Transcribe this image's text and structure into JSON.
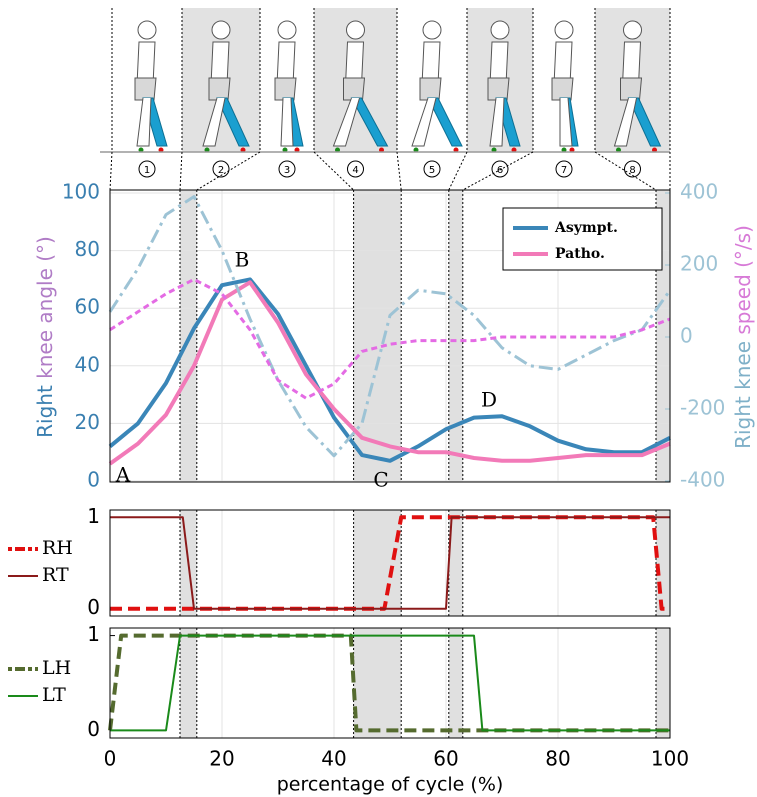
{
  "phases": {
    "labels": [
      "1",
      "2",
      "3",
      "4",
      "5",
      "6",
      "7",
      "8"
    ]
  },
  "chart_data": [
    {
      "type": "line",
      "ylabel_parts": [
        "Right",
        "knee angle (°)"
      ],
      "y2label_parts": [
        "Right knee",
        "speed (°/s)"
      ],
      "annotations": [
        "A",
        "B",
        "C",
        "D"
      ],
      "xlim": [
        0,
        100
      ],
      "ylim": [
        0,
        100
      ],
      "yticks": [
        0,
        20,
        40,
        60,
        80,
        100
      ],
      "y2lim": [
        -400,
        400
      ],
      "y2ticks": [
        -400,
        -200,
        0,
        200,
        400
      ],
      "grid": true,
      "legend": "upper right",
      "phase_bounds": [
        0,
        12.5,
        15.5,
        43.5,
        52,
        60.5,
        63,
        97.5,
        100
      ],
      "x": [
        0,
        5,
        10,
        15,
        20,
        25,
        30,
        35,
        40,
        45,
        50,
        55,
        60,
        65,
        70,
        75,
        80,
        85,
        90,
        95,
        100
      ],
      "series": [
        {
          "name": "Asympt.",
          "color": "#3a86b8",
          "style": "solid",
          "values": [
            12,
            20,
            34,
            53,
            68,
            70,
            58,
            40,
            22,
            9,
            7,
            12,
            18,
            22,
            22.5,
            19,
            14,
            11,
            10,
            10,
            15
          ]
        },
        {
          "name": "Patho.",
          "color": "#f27ab8",
          "style": "solid",
          "values": [
            6,
            13,
            23,
            40,
            63,
            69,
            55,
            37,
            25,
            15,
            12,
            10,
            10,
            8,
            7,
            7,
            8,
            9,
            9,
            9,
            13
          ]
        },
        {
          "color": "#9dc3d5",
          "style": "dashdot",
          "axis": "y2",
          "values": [
            70,
            190,
            340,
            390,
            240,
            50,
            -120,
            -250,
            -330,
            -240,
            60,
            130,
            120,
            60,
            -30,
            -80,
            -90,
            -50,
            -10,
            20,
            130
          ]
        },
        {
          "color": "#e46be4",
          "style": "dashed",
          "axis": "y2",
          "values": [
            20,
            70,
            120,
            160,
            120,
            20,
            -120,
            -170,
            -130,
            -40,
            -20,
            -10,
            -10,
            -10,
            0,
            0,
            0,
            0,
            0,
            20,
            50
          ]
        }
      ]
    },
    {
      "type": "line",
      "xlim": [
        0,
        100
      ],
      "ylim": [
        -0.08,
        1.08
      ],
      "yticks": [
        0,
        1
      ],
      "legend": "left",
      "series": [
        {
          "name": "RH",
          "color": "#e01010",
          "style": "dashed",
          "x": [
            0,
            49,
            52,
            97,
            98.5,
            100
          ],
          "values": [
            0,
            0,
            1,
            1,
            0,
            0
          ]
        },
        {
          "name": "RT",
          "color": "#8b1a1a",
          "style": "solid",
          "x": [
            0,
            13,
            15,
            60,
            61,
            100
          ],
          "values": [
            1,
            1,
            0,
            0,
            1,
            1
          ]
        }
      ]
    },
    {
      "type": "line",
      "xlim": [
        0,
        100
      ],
      "ylim": [
        -0.08,
        1.08
      ],
      "yticks": [
        0,
        1
      ],
      "legend": "left",
      "xticks": [
        0,
        20,
        40,
        60,
        80,
        100
      ],
      "xlabel": "percentage of cycle (%)",
      "series": [
        {
          "name": "LH",
          "color": "#556b2f",
          "style": "dashed",
          "x": [
            0,
            2,
            43,
            44,
            100
          ],
          "values": [
            0,
            1,
            1,
            0,
            0
          ]
        },
        {
          "name": "LT",
          "color": "#1a8a1a",
          "style": "solid",
          "x": [
            0,
            10,
            12.5,
            65,
            66.5,
            100
          ],
          "values": [
            0,
            0,
            1,
            1,
            0,
            0
          ]
        }
      ]
    }
  ]
}
